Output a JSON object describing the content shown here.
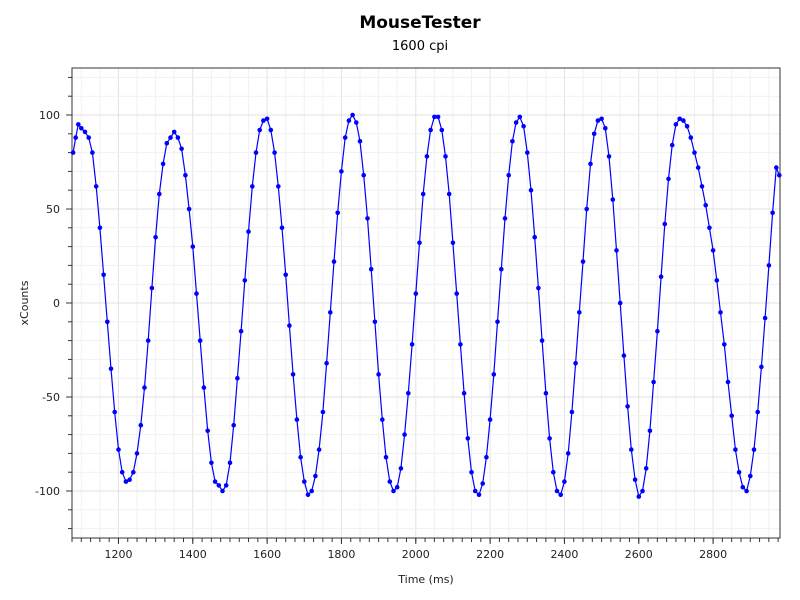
{
  "chart_data": {
    "type": "scatter",
    "title": "MouseTester",
    "subtitle": "1600 cpi",
    "xlabel": "Time (ms)",
    "ylabel": "xCounts",
    "xlim": [
      1075,
      2980
    ],
    "ylim": [
      -125,
      125
    ],
    "x_ticks": [
      1200,
      1400,
      1600,
      1800,
      2000,
      2200,
      2400,
      2600,
      2800
    ],
    "y_ticks": [
      100,
      50,
      0,
      -50,
      -100
    ],
    "grid": true,
    "series": [
      {
        "color": "#0000ff",
        "points": [
          [
            1078,
            80
          ],
          [
            1085,
            88
          ],
          [
            1092,
            95
          ],
          [
            1100,
            93
          ],
          [
            1110,
            91
          ],
          [
            1120,
            88
          ],
          [
            1130,
            80
          ],
          [
            1140,
            62
          ],
          [
            1150,
            40
          ],
          [
            1160,
            15
          ],
          [
            1170,
            -10
          ],
          [
            1180,
            -35
          ],
          [
            1190,
            -58
          ],
          [
            1200,
            -78
          ],
          [
            1210,
            -90
          ],
          [
            1220,
            -95
          ],
          [
            1230,
            -94
          ],
          [
            1240,
            -90
          ],
          [
            1250,
            -80
          ],
          [
            1260,
            -65
          ],
          [
            1270,
            -45
          ],
          [
            1280,
            -20
          ],
          [
            1290,
            8
          ],
          [
            1300,
            35
          ],
          [
            1310,
            58
          ],
          [
            1320,
            74
          ],
          [
            1330,
            85
          ],
          [
            1340,
            88
          ],
          [
            1350,
            91
          ],
          [
            1360,
            88
          ],
          [
            1370,
            82
          ],
          [
            1380,
            68
          ],
          [
            1390,
            50
          ],
          [
            1400,
            30
          ],
          [
            1410,
            5
          ],
          [
            1420,
            -20
          ],
          [
            1430,
            -45
          ],
          [
            1440,
            -68
          ],
          [
            1450,
            -85
          ],
          [
            1460,
            -95
          ],
          [
            1470,
            -97
          ],
          [
            1480,
            -100
          ],
          [
            1490,
            -97
          ],
          [
            1500,
            -85
          ],
          [
            1510,
            -65
          ],
          [
            1520,
            -40
          ],
          [
            1530,
            -15
          ],
          [
            1540,
            12
          ],
          [
            1550,
            38
          ],
          [
            1560,
            62
          ],
          [
            1570,
            80
          ],
          [
            1580,
            92
          ],
          [
            1590,
            97
          ],
          [
            1600,
            98
          ],
          [
            1610,
            92
          ],
          [
            1620,
            80
          ],
          [
            1630,
            62
          ],
          [
            1640,
            40
          ],
          [
            1650,
            15
          ],
          [
            1660,
            -12
          ],
          [
            1670,
            -38
          ],
          [
            1680,
            -62
          ],
          [
            1690,
            -82
          ],
          [
            1700,
            -95
          ],
          [
            1710,
            -102
          ],
          [
            1720,
            -100
          ],
          [
            1730,
            -92
          ],
          [
            1740,
            -78
          ],
          [
            1750,
            -58
          ],
          [
            1760,
            -32
          ],
          [
            1770,
            -5
          ],
          [
            1780,
            22
          ],
          [
            1790,
            48
          ],
          [
            1800,
            70
          ],
          [
            1810,
            88
          ],
          [
            1820,
            97
          ],
          [
            1830,
            100
          ],
          [
            1840,
            96
          ],
          [
            1850,
            86
          ],
          [
            1860,
            68
          ],
          [
            1870,
            45
          ],
          [
            1880,
            18
          ],
          [
            1890,
            -10
          ],
          [
            1900,
            -38
          ],
          [
            1910,
            -62
          ],
          [
            1920,
            -82
          ],
          [
            1930,
            -95
          ],
          [
            1940,
            -100
          ],
          [
            1950,
            -98
          ],
          [
            1960,
            -88
          ],
          [
            1970,
            -70
          ],
          [
            1980,
            -48
          ],
          [
            1990,
            -22
          ],
          [
            2000,
            5
          ],
          [
            2010,
            32
          ],
          [
            2020,
            58
          ],
          [
            2030,
            78
          ],
          [
            2040,
            92
          ],
          [
            2050,
            99
          ],
          [
            2060,
            99
          ],
          [
            2070,
            92
          ],
          [
            2080,
            78
          ],
          [
            2090,
            58
          ],
          [
            2100,
            32
          ],
          [
            2110,
            5
          ],
          [
            2120,
            -22
          ],
          [
            2130,
            -48
          ],
          [
            2140,
            -72
          ],
          [
            2150,
            -90
          ],
          [
            2160,
            -100
          ],
          [
            2170,
            -102
          ],
          [
            2180,
            -96
          ],
          [
            2190,
            -82
          ],
          [
            2200,
            -62
          ],
          [
            2210,
            -38
          ],
          [
            2220,
            -10
          ],
          [
            2230,
            18
          ],
          [
            2240,
            45
          ],
          [
            2250,
            68
          ],
          [
            2260,
            86
          ],
          [
            2270,
            96
          ],
          [
            2280,
            99
          ],
          [
            2290,
            94
          ],
          [
            2300,
            80
          ],
          [
            2310,
            60
          ],
          [
            2320,
            35
          ],
          [
            2330,
            8
          ],
          [
            2340,
            -20
          ],
          [
            2350,
            -48
          ],
          [
            2360,
            -72
          ],
          [
            2370,
            -90
          ],
          [
            2380,
            -100
          ],
          [
            2390,
            -102
          ],
          [
            2400,
            -95
          ],
          [
            2410,
            -80
          ],
          [
            2420,
            -58
          ],
          [
            2430,
            -32
          ],
          [
            2440,
            -5
          ],
          [
            2450,
            22
          ],
          [
            2460,
            50
          ],
          [
            2470,
            74
          ],
          [
            2480,
            90
          ],
          [
            2490,
            97
          ],
          [
            2500,
            98
          ],
          [
            2510,
            93
          ],
          [
            2520,
            78
          ],
          [
            2530,
            55
          ],
          [
            2540,
            28
          ],
          [
            2550,
            0
          ],
          [
            2560,
            -28
          ],
          [
            2570,
            -55
          ],
          [
            2580,
            -78
          ],
          [
            2590,
            -94
          ],
          [
            2600,
            -103
          ],
          [
            2610,
            -100
          ],
          [
            2620,
            -88
          ],
          [
            2630,
            -68
          ],
          [
            2640,
            -42
          ],
          [
            2650,
            -15
          ],
          [
            2660,
            14
          ],
          [
            2670,
            42
          ],
          [
            2680,
            66
          ],
          [
            2690,
            84
          ],
          [
            2700,
            95
          ],
          [
            2710,
            98
          ],
          [
            2720,
            97
          ],
          [
            2730,
            94
          ],
          [
            2740,
            88
          ],
          [
            2750,
            80
          ],
          [
            2760,
            72
          ],
          [
            2770,
            62
          ],
          [
            2780,
            52
          ],
          [
            2790,
            40
          ],
          [
            2800,
            28
          ],
          [
            2810,
            12
          ],
          [
            2820,
            -5
          ],
          [
            2830,
            -22
          ],
          [
            2840,
            -42
          ],
          [
            2850,
            -60
          ],
          [
            2860,
            -78
          ],
          [
            2870,
            -90
          ],
          [
            2880,
            -98
          ],
          [
            2890,
            -100
          ],
          [
            2900,
            -92
          ],
          [
            2910,
            -78
          ],
          [
            2920,
            -58
          ],
          [
            2930,
            -34
          ],
          [
            2940,
            -8
          ],
          [
            2950,
            20
          ],
          [
            2960,
            48
          ],
          [
            2970,
            72
          ],
          [
            2978,
            68
          ]
        ]
      }
    ]
  }
}
